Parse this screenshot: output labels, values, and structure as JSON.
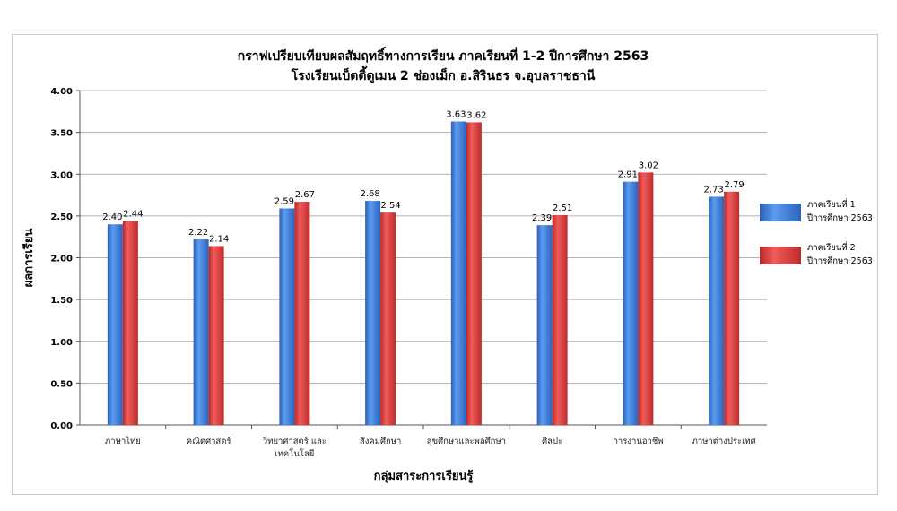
{
  "chart_data": {
    "type": "bar",
    "title": [
      "กราฟเปรียบเทียบผลสัมฤทธิ์ทางการเรียน ภาคเรียนที่  1-2  ปีการศึกษา 2563",
      "โรงเรียนเบ็ตติ้ดูเมน 2 ช่องเม็ก   อ.สิรินธร   จ.อุบลราชธานี"
    ],
    "xlabel": "กลุ่มสาระการเรียนรู้",
    "ylabel": "ผลการเรียน",
    "ylim": [
      0,
      4
    ],
    "yticks": [
      "0.00",
      "0.50",
      "1.00",
      "1.50",
      "2.00",
      "2.50",
      "3.00",
      "3.50",
      "4.00"
    ],
    "grid": true,
    "legend_position": "right",
    "categories": [
      [
        "ภาษาไทย"
      ],
      [
        "คณิตศาสตร์"
      ],
      [
        "วิทยาศาสตร์ และ",
        "เทคโนโลยี"
      ],
      [
        "สังคมศึกษา"
      ],
      [
        "สุขศึกษาและพลศึกษา"
      ],
      [
        "ศิลปะ"
      ],
      [
        "การงานอาชีพ"
      ],
      [
        "ภาษาต่างประเทศ"
      ]
    ],
    "series": [
      {
        "name": [
          "ภาคเรียนที่ 1",
          "ปีการศึกษา 2563"
        ],
        "color": "#3a78d4",
        "values": [
          2.4,
          2.22,
          2.59,
          2.68,
          3.63,
          2.39,
          2.91,
          2.73
        ],
        "labels": [
          "2.40",
          "2.22",
          "2.59",
          "2.68",
          "3.63",
          "2.39",
          "2.91",
          "2.73"
        ]
      },
      {
        "name": [
          "ภาคเรียนที่ 2",
          "ปีการศึกษา 2563"
        ],
        "color": "#d83a3a",
        "values": [
          2.44,
          2.14,
          2.67,
          2.54,
          3.62,
          2.51,
          3.02,
          2.79
        ],
        "labels": [
          "2.44",
          "2.14",
          "2.67",
          "2.54",
          "3.62",
          "2.51",
          "3.02",
          "2.79"
        ]
      }
    ]
  }
}
